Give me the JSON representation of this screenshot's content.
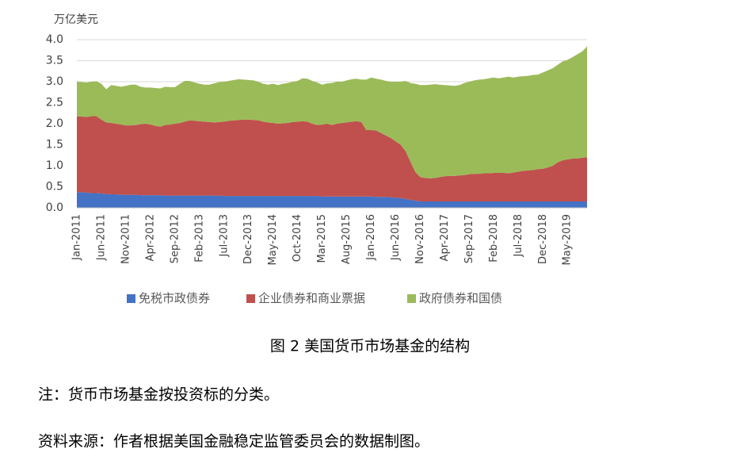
{
  "chart_data": {
    "type": "stacked_area",
    "title": "图 2  美国货币市场基金的结构",
    "y_unit_label": "万亿美元",
    "categories": [
      "Jan-2011",
      null,
      null,
      null,
      null,
      "Jun-2011",
      null,
      null,
      null,
      null,
      "Nov-2011",
      null,
      null,
      null,
      null,
      "Apr-2012",
      null,
      null,
      null,
      null,
      "Sep-2012",
      null,
      null,
      null,
      null,
      "Feb-2013",
      null,
      null,
      null,
      null,
      "Jul-2013",
      null,
      null,
      null,
      null,
      "Dec-2013",
      null,
      null,
      null,
      null,
      "May-2014",
      null,
      null,
      null,
      null,
      "Oct-2014",
      null,
      null,
      null,
      null,
      "Mar-2015",
      null,
      null,
      null,
      null,
      "Aug-2015",
      null,
      null,
      null,
      null,
      "Jan-2016",
      null,
      null,
      null,
      null,
      "Jun-2016",
      null,
      null,
      null,
      null,
      "Nov-2016",
      null,
      null,
      null,
      null,
      "Apr-2017",
      null,
      null,
      null,
      null,
      "Sep-2017",
      null,
      null,
      null,
      null,
      "Feb-2018",
      null,
      null,
      null,
      null,
      "Jul-2018",
      null,
      null,
      null,
      null,
      "Dec-2018",
      null,
      null,
      null,
      null,
      "May-2019",
      null,
      null,
      null,
      null
    ],
    "series": [
      {
        "name": "免税市政债券",
        "color": "#4472c4",
        "values": [
          0.37,
          0.37,
          0.36,
          0.35,
          0.35,
          0.34,
          0.33,
          0.32,
          0.32,
          0.31,
          0.31,
          0.31,
          0.31,
          0.3,
          0.3,
          0.3,
          0.3,
          0.3,
          0.29,
          0.29,
          0.29,
          0.29,
          0.29,
          0.29,
          0.29,
          0.29,
          0.29,
          0.29,
          0.29,
          0.29,
          0.28,
          0.28,
          0.28,
          0.28,
          0.28,
          0.28,
          0.28,
          0.28,
          0.28,
          0.28,
          0.28,
          0.28,
          0.28,
          0.28,
          0.28,
          0.28,
          0.28,
          0.28,
          0.28,
          0.28,
          0.27,
          0.27,
          0.27,
          0.27,
          0.27,
          0.27,
          0.27,
          0.27,
          0.27,
          0.27,
          0.27,
          0.26,
          0.26,
          0.26,
          0.25,
          0.24,
          0.23,
          0.21,
          0.19,
          0.17,
          0.15,
          0.15,
          0.15,
          0.15,
          0.15,
          0.15,
          0.15,
          0.15,
          0.15,
          0.15,
          0.15,
          0.15,
          0.15,
          0.15,
          0.15,
          0.15,
          0.15,
          0.15,
          0.15,
          0.15,
          0.15,
          0.15,
          0.15,
          0.15,
          0.15,
          0.15,
          0.15,
          0.15,
          0.15,
          0.15,
          0.15,
          0.15,
          0.15,
          0.15,
          0.15
        ]
      },
      {
        "name": "企业债券和商业票据",
        "color": "#c0504d",
        "values": [
          1.81,
          1.8,
          1.8,
          1.83,
          1.83,
          1.76,
          1.7,
          1.7,
          1.68,
          1.67,
          1.65,
          1.65,
          1.66,
          1.69,
          1.7,
          1.68,
          1.65,
          1.63,
          1.68,
          1.69,
          1.71,
          1.73,
          1.76,
          1.79,
          1.78,
          1.77,
          1.76,
          1.75,
          1.74,
          1.75,
          1.77,
          1.79,
          1.8,
          1.81,
          1.82,
          1.82,
          1.81,
          1.8,
          1.77,
          1.75,
          1.74,
          1.72,
          1.73,
          1.74,
          1.76,
          1.77,
          1.78,
          1.77,
          1.72,
          1.69,
          1.71,
          1.73,
          1.7,
          1.73,
          1.75,
          1.76,
          1.78,
          1.79,
          1.77,
          1.58,
          1.58,
          1.58,
          1.52,
          1.46,
          1.41,
          1.34,
          1.27,
          1.14,
          0.91,
          0.68,
          0.58,
          0.56,
          0.55,
          0.56,
          0.58,
          0.6,
          0.61,
          0.61,
          0.62,
          0.63,
          0.65,
          0.66,
          0.66,
          0.67,
          0.67,
          0.68,
          0.68,
          0.68,
          0.67,
          0.69,
          0.71,
          0.73,
          0.74,
          0.75,
          0.77,
          0.78,
          0.81,
          0.85,
          0.93,
          0.98,
          1.0,
          1.02,
          1.02,
          1.04,
          1.05
        ]
      },
      {
        "name": "政府债券和国债",
        "color": "#9bbb59",
        "values": [
          0.82,
          0.82,
          0.82,
          0.82,
          0.83,
          0.85,
          0.79,
          0.9,
          0.9,
          0.9,
          0.94,
          0.97,
          0.96,
          0.89,
          0.86,
          0.88,
          0.9,
          0.91,
          0.91,
          0.89,
          0.87,
          0.93,
          0.97,
          0.94,
          0.91,
          0.89,
          0.88,
          0.89,
          0.93,
          0.95,
          0.95,
          0.95,
          0.96,
          0.97,
          0.95,
          0.94,
          0.94,
          0.92,
          0.9,
          0.9,
          0.93,
          0.92,
          0.94,
          0.95,
          0.96,
          0.97,
          1.02,
          1.02,
          1.02,
          1.01,
          0.95,
          0.96,
          1.0,
          1.0,
          0.98,
          1.0,
          1.01,
          1.01,
          1.01,
          1.2,
          1.25,
          1.23,
          1.27,
          1.3,
          1.34,
          1.42,
          1.5,
          1.67,
          1.87,
          2.1,
          2.19,
          2.21,
          2.23,
          2.23,
          2.2,
          2.17,
          2.15,
          2.14,
          2.15,
          2.19,
          2.2,
          2.22,
          2.24,
          2.24,
          2.26,
          2.27,
          2.25,
          2.27,
          2.3,
          2.26,
          2.26,
          2.25,
          2.25,
          2.26,
          2.25,
          2.29,
          2.31,
          2.32,
          2.32,
          2.35,
          2.37,
          2.41,
          2.48,
          2.53,
          2.64
        ]
      }
    ],
    "ylim": [
      0,
      4
    ],
    "yticks": [
      {
        "value": 0,
        "label": "0.0"
      },
      0.5,
      {
        "value": 1,
        "label": "1.0"
      },
      1.5,
      {
        "value": 2,
        "label": "2.0"
      },
      2.5,
      {
        "value": 3,
        "label": "3.0"
      },
      3.5,
      {
        "value": 4,
        "label": "4.0"
      }
    ],
    "grid": true,
    "legend": "bottom"
  },
  "notes": [
    "注：货币市场基金按投资标的分类。",
    "资料来源：作者根据美国金融稳定监管委员会的数据制图。"
  ]
}
